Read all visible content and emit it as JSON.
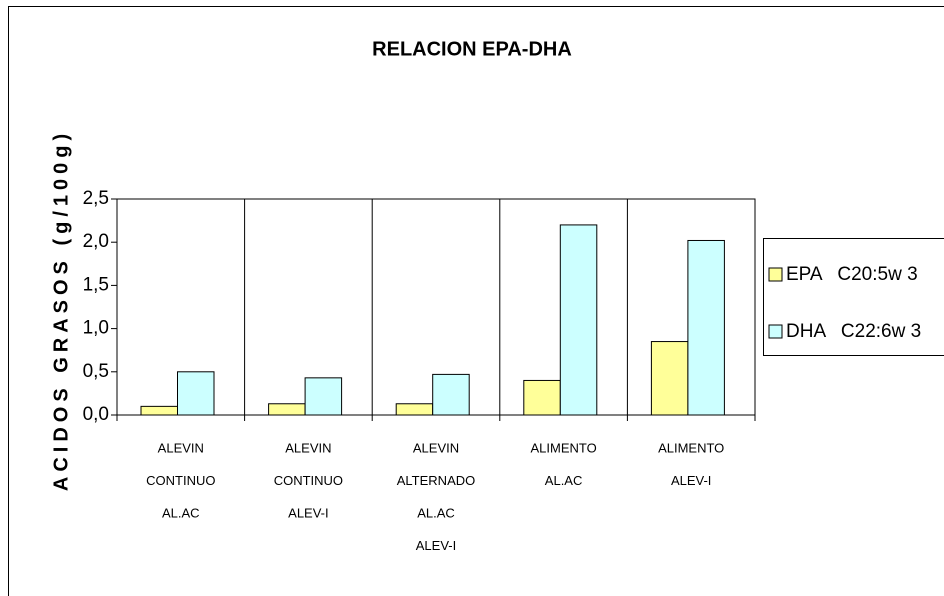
{
  "chart_data": {
    "type": "bar",
    "title": "RELACION EPA-DHA",
    "y_label": "ACIDOS GRASOS (g/100g)",
    "categories": [
      [
        "ALEVIN",
        "CONTINUO",
        "AL.AC"
      ],
      [
        "ALEVIN",
        "CONTINUO",
        "ALEV-I"
      ],
      [
        "ALEVIN",
        "ALTERNADO",
        "AL.AC",
        "ALEV-I"
      ],
      [
        "ALIMENTO",
        "AL.AC"
      ],
      [
        "ALIMENTO",
        "ALEV-I"
      ]
    ],
    "series": [
      {
        "name": "EPA   C20:5w 3",
        "color": "#ffff99",
        "values": [
          0.1,
          0.13,
          0.13,
          0.4,
          0.85
        ]
      },
      {
        "name": "DHA   C22:6w 3",
        "color": "#ccffff",
        "values": [
          0.5,
          0.43,
          0.47,
          2.2,
          2.02
        ]
      }
    ],
    "ylim": [
      0,
      2.5
    ],
    "yticks": [
      {
        "value": 0,
        "label": "0,0"
      },
      {
        "value": 0.5,
        "label": "0,5"
      },
      {
        "value": 1,
        "label": "1,0"
      },
      {
        "value": 1.5,
        "label": "1,5"
      },
      {
        "value": 2,
        "label": "2,0"
      },
      {
        "value": 2.5,
        "label": "2,5"
      }
    ],
    "grid": false,
    "legend": "right"
  }
}
